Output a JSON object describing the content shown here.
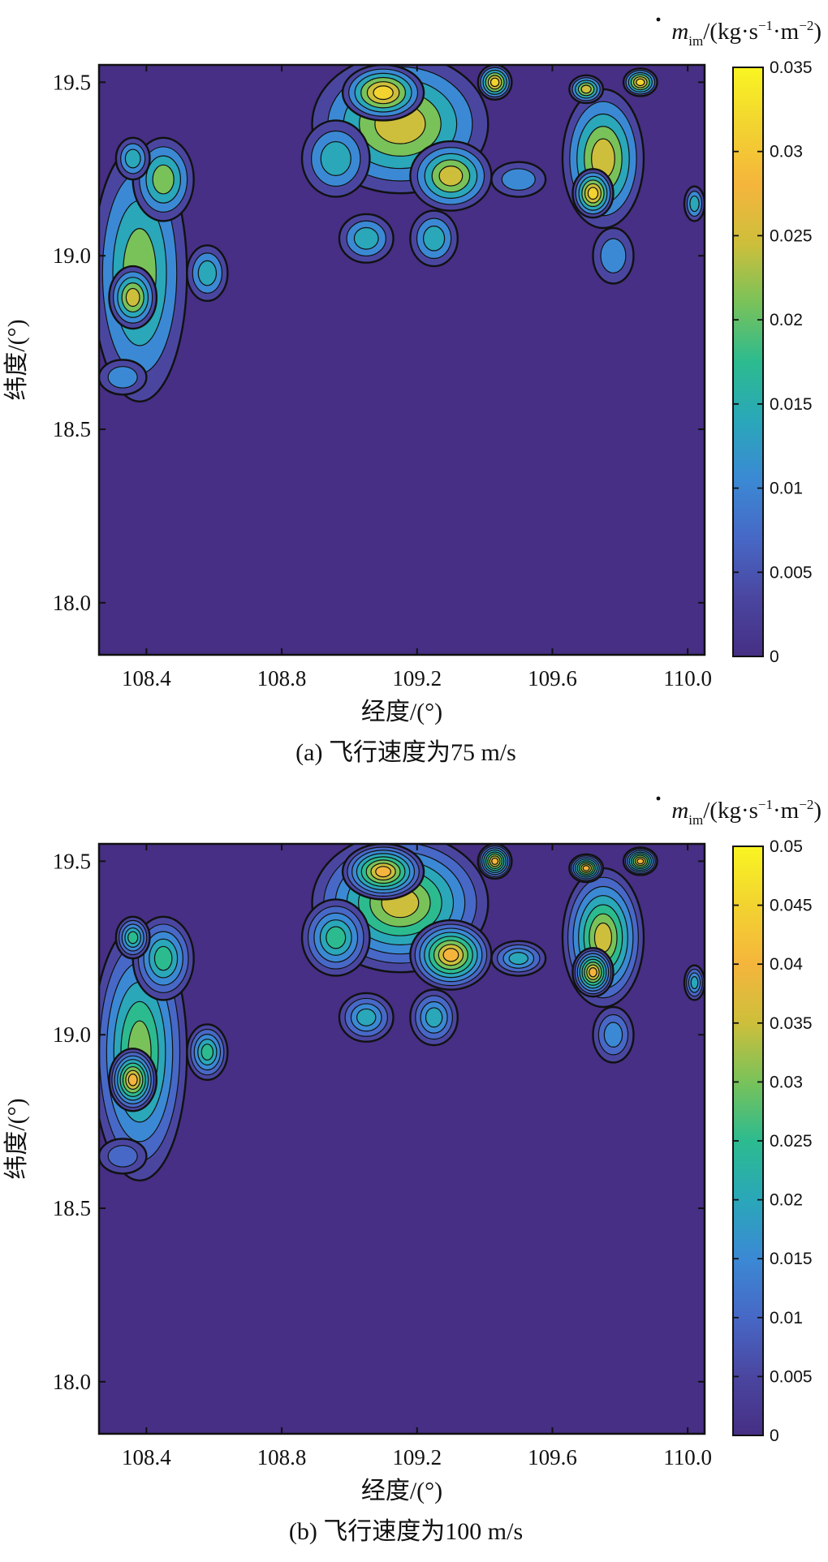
{
  "palette": [
    "#462f84",
    "#4a46a0",
    "#4768c6",
    "#3b89d4",
    "#2aa7b9",
    "#2cbb8f",
    "#79c25a",
    "#cdbf3b",
    "#f5b53c",
    "#f2d330",
    "#f9f522"
  ],
  "chart_data": [
    {
      "type": "heatmap",
      "subtype": "filled-contour",
      "caption": "(a) 飞行速度为75 m/s",
      "xlabel": "经度/(°)",
      "ylabel": "纬度/(°)",
      "colorbar_label": {
        "symbol": "m",
        "subscript": "im",
        "units_prefix": "/(kg·s",
        "exp1": "−1",
        "units_mid": "·m",
        "exp2": "−2",
        "units_suffix": ")"
      },
      "xlim": [
        108.26,
        110.05
      ],
      "ylim": [
        17.85,
        19.55
      ],
      "xticks": [
        108.4,
        108.8,
        109.2,
        109.6,
        110.0
      ],
      "xtick_labels": [
        "108.4",
        "108.8",
        "109.2",
        "109.6",
        "110.0"
      ],
      "yticks": [
        18.0,
        18.5,
        19.0,
        19.5
      ],
      "ytick_labels": [
        "18.0",
        "18.5",
        "19.0",
        "19.5"
      ],
      "colorbar_range": [
        0,
        0.035
      ],
      "colorbar_ticks": [
        0,
        0.005,
        0.01,
        0.015,
        0.02,
        0.025,
        0.03,
        0.035
      ],
      "colorbar_tick_labels": [
        "0",
        "0.005",
        "0.01",
        "0.015",
        "0.02",
        "0.025",
        "0.03",
        "0.035"
      ],
      "regions": [
        {
          "lon": 108.38,
          "lat": 18.95,
          "r_lon": 0.14,
          "r_lat": 0.37,
          "peak": 0.024
        },
        {
          "lon": 108.36,
          "lat": 18.88,
          "r_lon": 0.07,
          "r_lat": 0.09,
          "peak": 0.028
        },
        {
          "lon": 108.45,
          "lat": 19.22,
          "r_lon": 0.09,
          "r_lat": 0.12,
          "peak": 0.02
        },
        {
          "lon": 108.33,
          "lat": 18.65,
          "r_lon": 0.07,
          "r_lat": 0.05,
          "peak": 0.01
        },
        {
          "lon": 108.58,
          "lat": 18.95,
          "r_lon": 0.06,
          "r_lat": 0.08,
          "peak": 0.018
        },
        {
          "lon": 109.15,
          "lat": 19.38,
          "r_lon": 0.26,
          "r_lat": 0.2,
          "peak": 0.025
        },
        {
          "lon": 109.1,
          "lat": 19.47,
          "r_lon": 0.12,
          "r_lat": 0.08,
          "peak": 0.03
        },
        {
          "lon": 109.3,
          "lat": 19.23,
          "r_lon": 0.12,
          "r_lat": 0.1,
          "peak": 0.028
        },
        {
          "lon": 109.43,
          "lat": 19.5,
          "r_lon": 0.05,
          "r_lat": 0.05,
          "peak": 0.03
        },
        {
          "lon": 108.96,
          "lat": 19.28,
          "r_lon": 0.1,
          "r_lat": 0.11,
          "peak": 0.018
        },
        {
          "lon": 109.05,
          "lat": 19.05,
          "r_lon": 0.08,
          "r_lat": 0.07,
          "peak": 0.015
        },
        {
          "lon": 109.25,
          "lat": 19.05,
          "r_lon": 0.07,
          "r_lat": 0.08,
          "peak": 0.016
        },
        {
          "lon": 109.5,
          "lat": 19.22,
          "r_lon": 0.08,
          "r_lat": 0.05,
          "peak": 0.014
        },
        {
          "lon": 109.75,
          "lat": 19.28,
          "r_lon": 0.12,
          "r_lat": 0.2,
          "peak": 0.025
        },
        {
          "lon": 109.72,
          "lat": 19.18,
          "r_lon": 0.06,
          "r_lat": 0.07,
          "peak": 0.03
        },
        {
          "lon": 109.7,
          "lat": 19.48,
          "r_lon": 0.05,
          "r_lat": 0.04,
          "peak": 0.028
        },
        {
          "lon": 109.86,
          "lat": 19.5,
          "r_lon": 0.05,
          "r_lat": 0.04,
          "peak": 0.03
        },
        {
          "lon": 109.78,
          "lat": 19.0,
          "r_lon": 0.06,
          "r_lat": 0.08,
          "peak": 0.012
        },
        {
          "lon": 110.02,
          "lat": 19.15,
          "r_lon": 0.03,
          "r_lat": 0.05,
          "peak": 0.016
        },
        {
          "lon": 108.36,
          "lat": 19.28,
          "r_lon": 0.05,
          "r_lat": 0.06,
          "peak": 0.018
        }
      ]
    },
    {
      "type": "heatmap",
      "subtype": "filled-contour",
      "caption": "(b) 飞行速度为100 m/s",
      "xlabel": "经度/(°)",
      "ylabel": "纬度/(°)",
      "colorbar_label": {
        "symbol": "m",
        "subscript": "im",
        "units_prefix": "/(kg·s",
        "exp1": "−1",
        "units_mid": "·m",
        "exp2": "−2",
        "units_suffix": ")"
      },
      "xlim": [
        108.26,
        110.05
      ],
      "ylim": [
        17.85,
        19.55
      ],
      "xticks": [
        108.4,
        108.8,
        109.2,
        109.6,
        110.0
      ],
      "xtick_labels": [
        "108.4",
        "108.8",
        "109.2",
        "109.6",
        "110.0"
      ],
      "yticks": [
        18.0,
        18.5,
        19.0,
        19.5
      ],
      "ytick_labels": [
        "18.0",
        "18.5",
        "19.0",
        "19.5"
      ],
      "colorbar_range": [
        0,
        0.05
      ],
      "colorbar_ticks": [
        0,
        0.005,
        0.01,
        0.015,
        0.02,
        0.025,
        0.03,
        0.035,
        0.04,
        0.045,
        0.05
      ],
      "colorbar_tick_labels": [
        "0",
        "0.005",
        "0.01",
        "0.015",
        "0.02",
        "0.025",
        "0.03",
        "0.035",
        "0.04",
        "0.045",
        "0.05"
      ],
      "regions": [
        {
          "lon": 108.38,
          "lat": 18.95,
          "r_lon": 0.14,
          "r_lat": 0.37,
          "peak": 0.033
        },
        {
          "lon": 108.36,
          "lat": 18.87,
          "r_lon": 0.07,
          "r_lat": 0.09,
          "peak": 0.04
        },
        {
          "lon": 108.45,
          "lat": 19.22,
          "r_lon": 0.09,
          "r_lat": 0.12,
          "peak": 0.028
        },
        {
          "lon": 108.33,
          "lat": 18.65,
          "r_lon": 0.07,
          "r_lat": 0.05,
          "peak": 0.014
        },
        {
          "lon": 108.58,
          "lat": 18.95,
          "r_lon": 0.06,
          "r_lat": 0.08,
          "peak": 0.026
        },
        {
          "lon": 109.15,
          "lat": 19.38,
          "r_lon": 0.26,
          "r_lat": 0.2,
          "peak": 0.035
        },
        {
          "lon": 109.1,
          "lat": 19.47,
          "r_lon": 0.12,
          "r_lat": 0.08,
          "peak": 0.042
        },
        {
          "lon": 109.3,
          "lat": 19.23,
          "r_lon": 0.12,
          "r_lat": 0.1,
          "peak": 0.04
        },
        {
          "lon": 109.43,
          "lat": 19.5,
          "r_lon": 0.05,
          "r_lat": 0.05,
          "peak": 0.042
        },
        {
          "lon": 108.96,
          "lat": 19.28,
          "r_lon": 0.1,
          "r_lat": 0.11,
          "peak": 0.026
        },
        {
          "lon": 109.05,
          "lat": 19.05,
          "r_lon": 0.08,
          "r_lat": 0.07,
          "peak": 0.022
        },
        {
          "lon": 109.25,
          "lat": 19.05,
          "r_lon": 0.07,
          "r_lat": 0.08,
          "peak": 0.024
        },
        {
          "lon": 109.5,
          "lat": 19.22,
          "r_lon": 0.08,
          "r_lat": 0.05,
          "peak": 0.02
        },
        {
          "lon": 109.75,
          "lat": 19.28,
          "r_lon": 0.12,
          "r_lat": 0.2,
          "peak": 0.035
        },
        {
          "lon": 109.72,
          "lat": 19.18,
          "r_lon": 0.06,
          "r_lat": 0.07,
          "peak": 0.042
        },
        {
          "lon": 109.7,
          "lat": 19.48,
          "r_lon": 0.05,
          "r_lat": 0.04,
          "peak": 0.04
        },
        {
          "lon": 109.86,
          "lat": 19.5,
          "r_lon": 0.05,
          "r_lat": 0.04,
          "peak": 0.043
        },
        {
          "lon": 109.78,
          "lat": 19.0,
          "r_lon": 0.06,
          "r_lat": 0.08,
          "peak": 0.018
        },
        {
          "lon": 110.02,
          "lat": 19.15,
          "r_lon": 0.03,
          "r_lat": 0.05,
          "peak": 0.024
        },
        {
          "lon": 108.36,
          "lat": 19.28,
          "r_lon": 0.05,
          "r_lat": 0.06,
          "peak": 0.026
        }
      ]
    }
  ]
}
